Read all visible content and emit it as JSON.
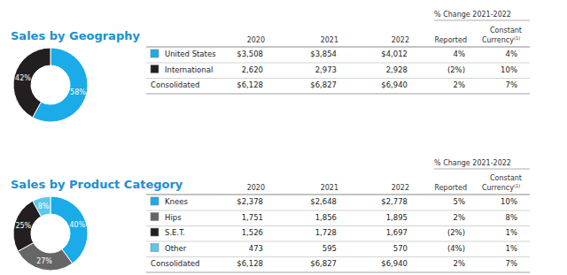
{
  "chart_data": [
    {
      "type": "pie",
      "title": "Sales by Geography",
      "values": [
        58,
        42
      ],
      "value_labels": [
        "58%",
        "42%"
      ],
      "colors": [
        "#1aabe8",
        "#231f20"
      ],
      "data_labels": true
    },
    {
      "type": "pie",
      "title": "Sales by Product Category",
      "values": [
        40,
        27,
        25,
        8
      ],
      "value_labels": [
        "40%",
        "27%",
        "25%",
        "8%"
      ],
      "colors": [
        "#1aabe8",
        "#666666",
        "#231f20",
        "#5cc7ee"
      ],
      "data_labels": true
    }
  ],
  "tables": [
    {
      "group_header": "% Change 2021-2022",
      "columns": [
        {
          "lines": [
            "2020"
          ]
        },
        {
          "lines": [
            "2021"
          ]
        },
        {
          "lines": [
            "2022"
          ]
        },
        {
          "lines": [
            "Reported"
          ]
        },
        {
          "lines": [
            "Constant",
            "Currency"
          ],
          "note": "(1)"
        }
      ],
      "rows": [
        {
          "label": "United States",
          "color": "#1aabe8",
          "cells": [
            "$3,508",
            "$3,854",
            "$4,012",
            "4%",
            "4%"
          ]
        },
        {
          "label": "International",
          "color": "#231f20",
          "cells": [
            "2,620",
            "2,973",
            "2,928",
            "(2%)",
            "10%"
          ]
        },
        {
          "label": "Consolidated",
          "cells": [
            "$6,128",
            "$6,827",
            "$6,940",
            "2%",
            "7%"
          ]
        }
      ]
    },
    {
      "group_header": "% Change 2021-2022",
      "columns": [
        {
          "lines": [
            "2020"
          ]
        },
        {
          "lines": [
            "2021"
          ]
        },
        {
          "lines": [
            "2022"
          ]
        },
        {
          "lines": [
            "Reported"
          ]
        },
        {
          "lines": [
            "Constant",
            "Currency"
          ],
          "note": "(1)"
        }
      ],
      "rows": [
        {
          "label": "Knees",
          "color": "#1aabe8",
          "cells": [
            "$2,378",
            "$2,648",
            "$2,778",
            "5%",
            "10%"
          ]
        },
        {
          "label": "Hips",
          "color": "#666666",
          "cells": [
            "1,751",
            "1,856",
            "1,895",
            "2%",
            "8%"
          ]
        },
        {
          "label": "S.E.T.",
          "color": "#231f20",
          "cells": [
            "1,526",
            "1,728",
            "1,697",
            "(2%)",
            "1%"
          ]
        },
        {
          "label": "Other",
          "color": "#5cc7ee",
          "cells": [
            "473",
            "595",
            "570",
            "(4%)",
            "1%"
          ]
        },
        {
          "label": "Consolidated",
          "cells": [
            "$6,128",
            "$6,827",
            "$6,940",
            "2%",
            "7%"
          ]
        }
      ]
    }
  ]
}
